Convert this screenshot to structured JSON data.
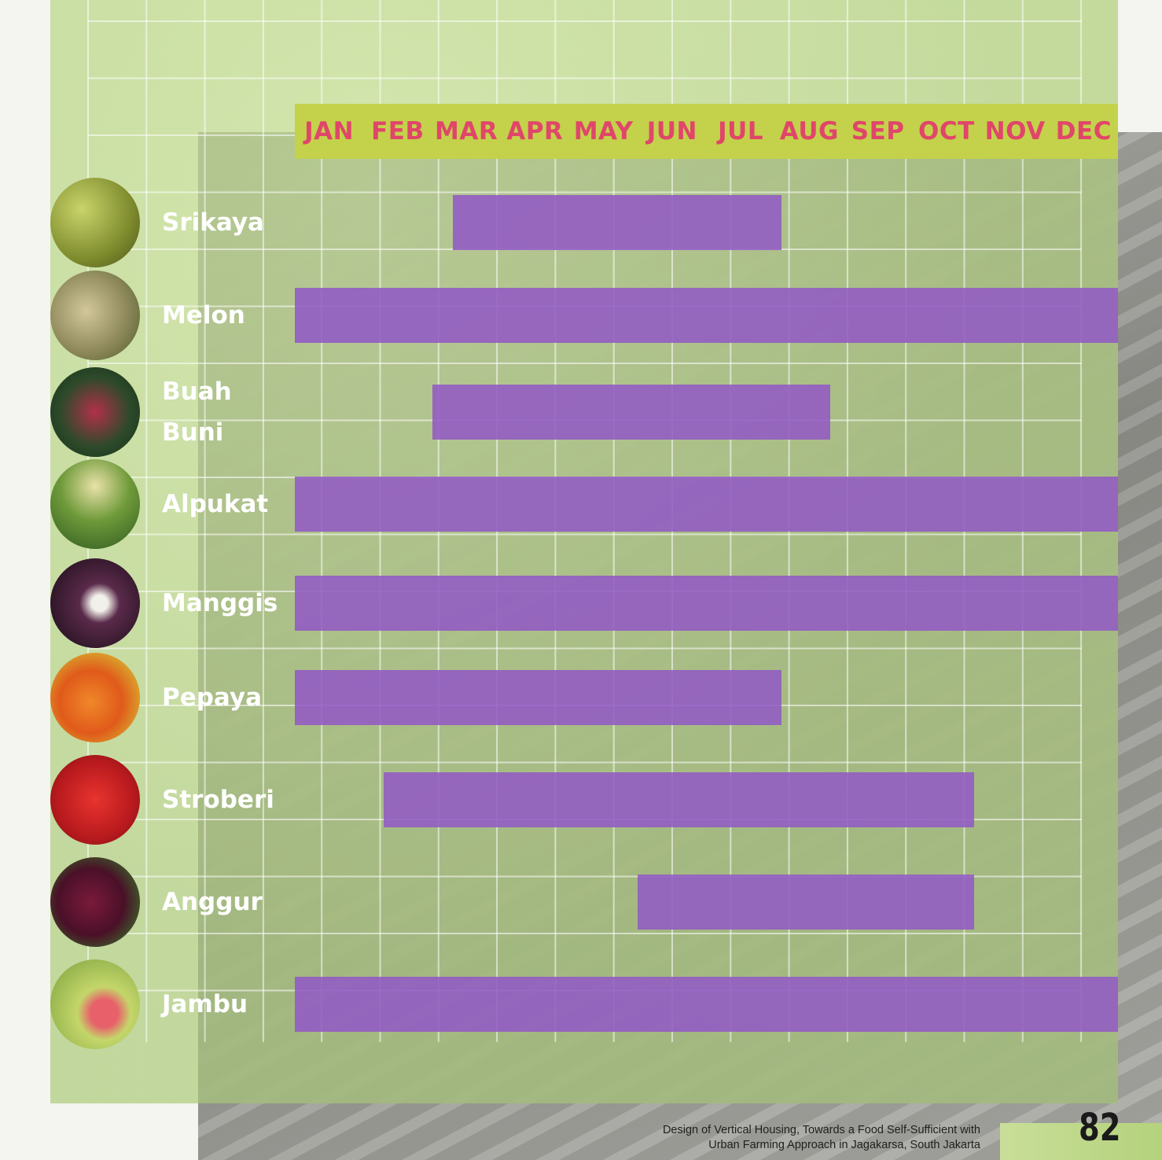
{
  "chart_data": {
    "type": "bar",
    "orientation": "horizontal-gantt",
    "months": [
      "JAN",
      "FEB",
      "MAR",
      "APR",
      "MAY",
      "JUN",
      "JUL",
      "AUG",
      "SEP",
      "OCT",
      "NOV",
      "DEC"
    ],
    "series": [
      {
        "name": "Srikaya",
        "start": 3.3,
        "end": 8.1,
        "label_lines": [
          "Srikaya"
        ],
        "icon": "sugar-apple-icon"
      },
      {
        "name": "Melon",
        "start": 1,
        "end": 13,
        "label_lines": [
          "Melon"
        ],
        "icon": "melon-icon"
      },
      {
        "name": "Buah Buni",
        "start": 3.0,
        "end": 8.8,
        "label_lines": [
          "Buah",
          "Buni"
        ],
        "icon": "buni-berry-icon"
      },
      {
        "name": "Alpukat",
        "start": 1,
        "end": 13,
        "label_lines": [
          "Alpukat"
        ],
        "icon": "avocado-icon"
      },
      {
        "name": "Manggis",
        "start": 1,
        "end": 13,
        "label_lines": [
          "Manggis"
        ],
        "icon": "mangosteen-icon"
      },
      {
        "name": "Pepaya",
        "start": 1,
        "end": 8.1,
        "label_lines": [
          "Pepaya"
        ],
        "icon": "papaya-icon"
      },
      {
        "name": "Stroberi",
        "start": 2.3,
        "end": 10.9,
        "label_lines": [
          "Stroberi"
        ],
        "icon": "strawberry-icon"
      },
      {
        "name": "Anggur",
        "start": 6.0,
        "end": 10.9,
        "label_lines": [
          "Anggur"
        ],
        "icon": "grape-icon"
      },
      {
        "name": "Jambu",
        "start": 1,
        "end": 13,
        "label_lines": [
          "Jambu"
        ],
        "icon": "guava-icon"
      }
    ],
    "colors": {
      "bar": "#925ac4",
      "month_header_bg": "#c3d24a",
      "month_text": "#e0466a"
    }
  },
  "footer": {
    "line1": "Design of Vertical Housing, Towards a Food Self-Sufficient with",
    "line2": "Urban Farming Approach in Jagakarsa, South Jakarta",
    "page_number": "82"
  }
}
